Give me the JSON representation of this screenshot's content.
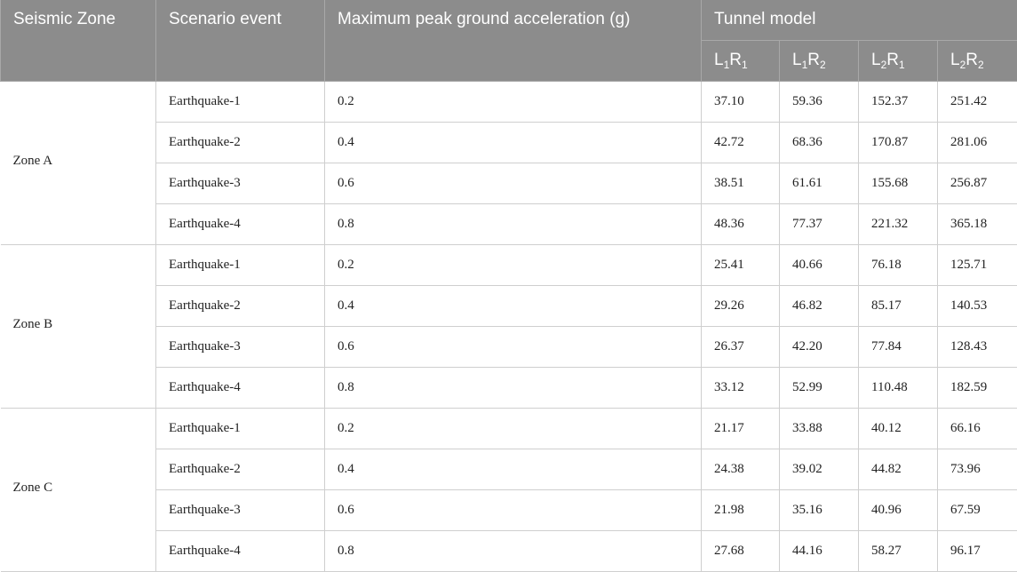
{
  "table": {
    "headers": {
      "seismic_zone": "Seismic Zone",
      "scenario_event": "Scenario event",
      "pga": "Maximum peak ground acceleration (g)",
      "tunnel_model": "Tunnel model",
      "models": [
        {
          "L": "L",
          "l_sub": "1",
          "R": "R",
          "r_sub": "1"
        },
        {
          "L": "L",
          "l_sub": "1",
          "R": "R",
          "r_sub": "2"
        },
        {
          "L": "L",
          "l_sub": "2",
          "R": "R",
          "r_sub": "1"
        },
        {
          "L": "L",
          "l_sub": "2",
          "R": "R",
          "r_sub": "2"
        }
      ]
    },
    "zones": [
      {
        "name": "Zone A",
        "rows": [
          {
            "event": "Earthquake-1",
            "pga": "0.2",
            "v": [
              "37.10",
              "59.36",
              "152.37",
              "251.42"
            ]
          },
          {
            "event": "Earthquake-2",
            "pga": "0.4",
            "v": [
              "42.72",
              "68.36",
              "170.87",
              "281.06"
            ]
          },
          {
            "event": "Earthquake-3",
            "pga": "0.6",
            "v": [
              "38.51",
              "61.61",
              "155.68",
              "256.87"
            ]
          },
          {
            "event": "Earthquake-4",
            "pga": "0.8",
            "v": [
              "48.36",
              "77.37",
              "221.32",
              "365.18"
            ]
          }
        ]
      },
      {
        "name": "Zone B",
        "rows": [
          {
            "event": "Earthquake-1",
            "pga": "0.2",
            "v": [
              "25.41",
              "40.66",
              "76.18",
              "125.71"
            ]
          },
          {
            "event": "Earthquake-2",
            "pga": "0.4",
            "v": [
              "29.26",
              "46.82",
              "85.17",
              "140.53"
            ]
          },
          {
            "event": "Earthquake-3",
            "pga": "0.6",
            "v": [
              "26.37",
              "42.20",
              "77.84",
              "128.43"
            ]
          },
          {
            "event": "Earthquake-4",
            "pga": "0.8",
            "v": [
              "33.12",
              "52.99",
              "110.48",
              "182.59"
            ]
          }
        ]
      },
      {
        "name": "Zone C",
        "rows": [
          {
            "event": "Earthquake-1",
            "pga": "0.2",
            "v": [
              "21.17",
              "33.88",
              "40.12",
              "66.16"
            ]
          },
          {
            "event": "Earthquake-2",
            "pga": "0.4",
            "v": [
              "24.38",
              "39.02",
              "44.82",
              "73.96"
            ]
          },
          {
            "event": "Earthquake-3",
            "pga": "0.6",
            "v": [
              "21.98",
              "35.16",
              "40.96",
              "67.59"
            ]
          },
          {
            "event": "Earthquake-4",
            "pga": "0.8",
            "v": [
              "27.68",
              "44.16",
              "58.27",
              "96.17"
            ]
          }
        ]
      }
    ]
  }
}
